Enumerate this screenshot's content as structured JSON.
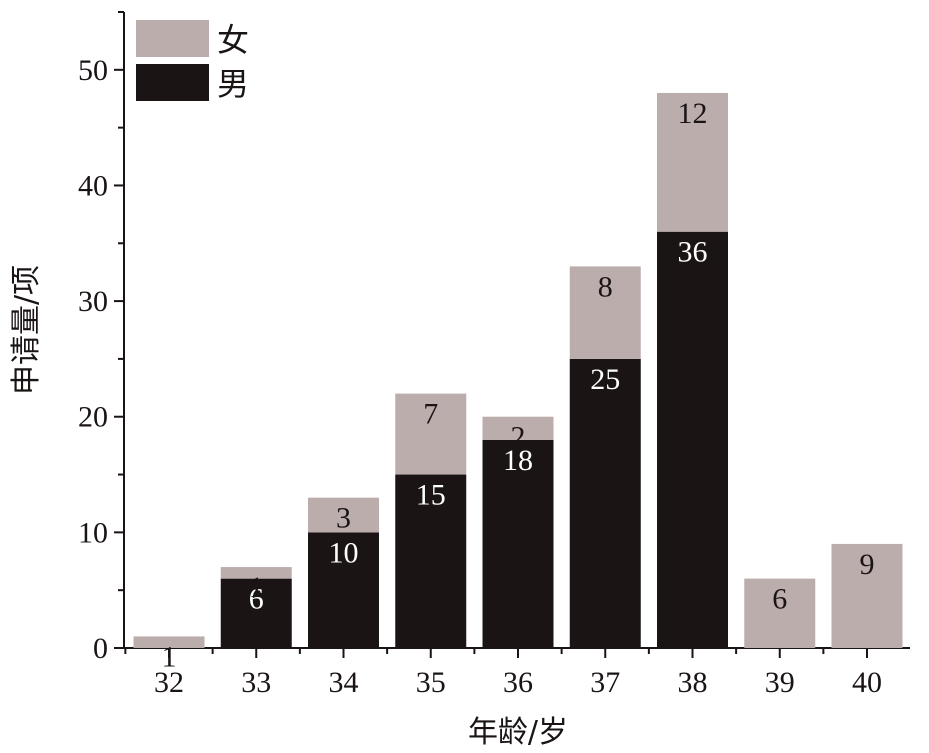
{
  "chart_data": {
    "type": "bar",
    "stacked": true,
    "xlabel": "年龄/岁",
    "ylabel": "申请量/项",
    "ylim": [
      0,
      55
    ],
    "yticks": [
      0,
      10,
      20,
      30,
      40,
      50
    ],
    "categories": [
      "32",
      "33",
      "34",
      "35",
      "36",
      "37",
      "38",
      "39",
      "40"
    ],
    "series": [
      {
        "name": "男",
        "color": "#1b1414",
        "label_color": "#ffffff",
        "values": [
          0,
          6,
          10,
          15,
          18,
          25,
          36,
          0,
          0
        ]
      },
      {
        "name": "女",
        "color": "#bcadad",
        "label_color": "#1a1414",
        "values": [
          1,
          1,
          3,
          7,
          2,
          8,
          12,
          6,
          9
        ]
      }
    ],
    "legend": {
      "position": "top-left",
      "order": [
        "女",
        "男"
      ]
    },
    "grid": false
  }
}
